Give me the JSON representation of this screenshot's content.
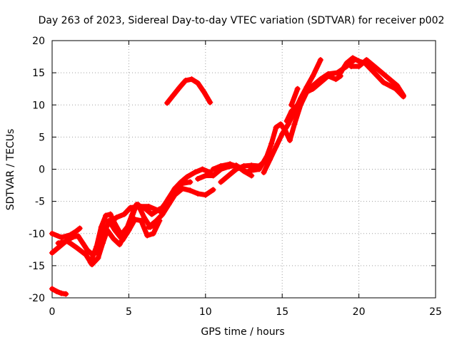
{
  "chart_data": {
    "type": "scatter",
    "title": "Day 263 of 2023, Sidereal Day-to-day VTEC variation (SDTVAR) for receiver p002",
    "xlabel": "GPS time / hours",
    "ylabel": "SDTVAR / TECUs",
    "xlim": [
      0,
      25
    ],
    "ylim": [
      -20,
      20
    ],
    "xticks": [
      0,
      5,
      10,
      15,
      20,
      25
    ],
    "yticks": [
      -20,
      -15,
      -10,
      -5,
      0,
      5,
      10,
      15,
      20
    ],
    "grid": true,
    "marker": "+",
    "color": "#ff0000",
    "series": [
      {
        "name": "s1",
        "points": [
          [
            0,
            -18.6
          ],
          [
            0.3,
            -19.0
          ],
          [
            0.6,
            -19.3
          ],
          [
            0.9,
            -19.4
          ]
        ]
      },
      {
        "name": "s2",
        "points": [
          [
            0,
            -13
          ],
          [
            0.5,
            -12
          ],
          [
            1,
            -11
          ],
          [
            1.4,
            -10.5
          ],
          [
            1.7,
            -10.4
          ],
          [
            2.0,
            -11.5
          ],
          [
            2.3,
            -12.6
          ],
          [
            2.6,
            -13.2
          ]
        ]
      },
      {
        "name": "s3",
        "points": [
          [
            0,
            -10
          ],
          [
            0.6,
            -10.6
          ],
          [
            1.2,
            -10.2
          ],
          [
            1.6,
            -9.6
          ],
          [
            1.8,
            -9.2
          ]
        ]
      },
      {
        "name": "s4",
        "points": [
          [
            0.4,
            -11.5
          ],
          [
            1,
            -11.2
          ],
          [
            1.6,
            -12.2
          ],
          [
            2.2,
            -13.3
          ],
          [
            2.6,
            -14.8
          ],
          [
            3.0,
            -13.8
          ],
          [
            3.3,
            -11.5
          ],
          [
            3.6,
            -9.5
          ],
          [
            4.0,
            -10.8
          ],
          [
            4.4,
            -11.7
          ],
          [
            4.8,
            -10.0
          ],
          [
            5.2,
            -7.5
          ],
          [
            5.5,
            -5.5
          ],
          [
            6.0,
            -6.0
          ],
          [
            6.5,
            -7.0
          ],
          [
            7.0,
            -6.2
          ]
        ]
      },
      {
        "name": "s5",
        "points": [
          [
            2.5,
            -14.5
          ],
          [
            2.9,
            -12.0
          ],
          [
            3.2,
            -9.0
          ],
          [
            3.5,
            -7.2
          ],
          [
            3.8,
            -7.0
          ],
          [
            4.1,
            -8.5
          ],
          [
            4.5,
            -10.2
          ],
          [
            4.9,
            -9.0
          ],
          [
            5.3,
            -6.5
          ],
          [
            5.6,
            -5.5
          ],
          [
            6.0,
            -7.5
          ],
          [
            6.4,
            -9.0
          ],
          [
            6.8,
            -8.5
          ]
        ]
      },
      {
        "name": "s6",
        "points": [
          [
            3.0,
            -13.2
          ],
          [
            3.4,
            -10.0
          ],
          [
            3.7,
            -8.0
          ],
          [
            4.1,
            -9.5
          ],
          [
            4.6,
            -11.0
          ],
          [
            5.0,
            -9.5
          ],
          [
            5.4,
            -7.8
          ],
          [
            5.8,
            -8.0
          ],
          [
            6.2,
            -10.3
          ],
          [
            6.6,
            -10.0
          ],
          [
            7.0,
            -8.0
          ]
        ]
      },
      {
        "name": "s7",
        "points": [
          [
            3.3,
            -9.5
          ],
          [
            3.7,
            -8.5
          ],
          [
            4.2,
            -7.5
          ],
          [
            4.7,
            -7.0
          ],
          [
            5.1,
            -6.0
          ],
          [
            5.6,
            -5.8
          ],
          [
            6.3,
            -5.8
          ],
          [
            7.0,
            -6.5
          ],
          [
            7.5,
            -5.0
          ],
          [
            8.0,
            -3.0
          ],
          [
            8.5,
            -2.2
          ],
          [
            9.0,
            -2.0
          ]
        ]
      },
      {
        "name": "s8",
        "points": [
          [
            6.3,
            -9.0
          ],
          [
            6.8,
            -8.0
          ],
          [
            7.2,
            -7.0
          ],
          [
            7.6,
            -5.5
          ],
          [
            8.0,
            -4.0
          ],
          [
            8.5,
            -3.0
          ],
          [
            9.0,
            -3.3
          ],
          [
            9.5,
            -3.8
          ],
          [
            10.0,
            -4.0
          ],
          [
            10.5,
            -3.2
          ]
        ]
      },
      {
        "name": "s9",
        "points": [
          [
            7.2,
            -6.0
          ],
          [
            7.6,
            -4.5
          ],
          [
            8.0,
            -3.0
          ],
          [
            8.4,
            -2.0
          ],
          [
            8.8,
            -1.2
          ],
          [
            9.3,
            -0.5
          ],
          [
            9.8,
            0
          ],
          [
            10.3,
            -0.5
          ]
        ]
      },
      {
        "name": "s10",
        "points": [
          [
            7.5,
            10.3
          ],
          [
            7.9,
            11.5
          ],
          [
            8.3,
            12.7
          ],
          [
            8.7,
            13.8
          ],
          [
            9.1,
            14.0
          ],
          [
            9.5,
            13.4
          ],
          [
            9.9,
            12.0
          ],
          [
            10.3,
            10.4
          ]
        ]
      },
      {
        "name": "s11",
        "points": [
          [
            9.5,
            -1.5
          ],
          [
            10.0,
            -1.0
          ],
          [
            10.5,
            -1.0
          ],
          [
            11.0,
            0
          ],
          [
            11.5,
            0.4
          ],
          [
            12.0,
            0.6
          ],
          [
            12.5,
            -0.3
          ],
          [
            13.0,
            -1.0
          ]
        ]
      },
      {
        "name": "s12",
        "points": [
          [
            10.5,
            0
          ],
          [
            11.0,
            0.5
          ],
          [
            11.6,
            0.8
          ],
          [
            12.2,
            0.3
          ],
          [
            12.7,
            -0.5
          ],
          [
            13.0,
            0
          ]
        ]
      },
      {
        "name": "s13",
        "points": [
          [
            11.0,
            -2.0
          ],
          [
            11.5,
            -1.0
          ],
          [
            12.0,
            0
          ],
          [
            12.5,
            0.5
          ],
          [
            13.0,
            0.6
          ],
          [
            13.5,
            0.5
          ],
          [
            14.0,
            1.5
          ]
        ]
      },
      {
        "name": "s14",
        "points": [
          [
            13.0,
            -0.2
          ],
          [
            13.5,
            0
          ],
          [
            14.0,
            2.0
          ],
          [
            14.3,
            4.0
          ],
          [
            14.6,
            6.5
          ],
          [
            14.9,
            7.0
          ],
          [
            15.2,
            6.0
          ],
          [
            15.5,
            4.5
          ],
          [
            15.8,
            7.0
          ],
          [
            16.2,
            10.0
          ],
          [
            16.6,
            12.0
          ],
          [
            17.0,
            12.5
          ],
          [
            17.5,
            13.5
          ],
          [
            18.0,
            14.5
          ],
          [
            18.5,
            14.0
          ],
          [
            18.8,
            14.5
          ]
        ]
      },
      {
        "name": "s15",
        "points": [
          [
            13.8,
            -0.5
          ],
          [
            14.2,
            1.5
          ],
          [
            14.6,
            3.5
          ],
          [
            15.0,
            5.5
          ],
          [
            15.4,
            7.0
          ],
          [
            15.8,
            9.0
          ],
          [
            16.2,
            11.0
          ],
          [
            16.6,
            12.8
          ],
          [
            17.0,
            14.5
          ],
          [
            17.5,
            17.0
          ]
        ]
      },
      {
        "name": "s16",
        "points": [
          [
            15.3,
            7.5
          ],
          [
            15.6,
            9.0
          ],
          [
            16.0,
            10.0
          ],
          [
            16.5,
            12.0
          ],
          [
            17.0,
            13.0
          ],
          [
            17.5,
            14.0
          ],
          [
            18.0,
            14.8
          ],
          [
            18.6,
            15.0
          ],
          [
            19.2,
            16.0
          ],
          [
            19.7,
            17.0
          ]
        ]
      },
      {
        "name": "s17",
        "points": [
          [
            15.6,
            10.0
          ],
          [
            16.0,
            12.5
          ]
        ]
      },
      {
        "name": "s18",
        "points": [
          [
            18.8,
            15.0
          ],
          [
            19.2,
            16.5
          ],
          [
            19.6,
            17.3
          ],
          [
            20.0,
            16.8
          ],
          [
            20.4,
            16.5
          ],
          [
            20.8,
            15.5
          ],
          [
            21.2,
            14.5
          ],
          [
            21.6,
            13.5
          ],
          [
            22.0,
            13.0
          ],
          [
            22.4,
            12.5
          ],
          [
            22.9,
            11.3
          ]
        ]
      },
      {
        "name": "s19",
        "points": [
          [
            19.5,
            16.0
          ],
          [
            20.0,
            16.0
          ],
          [
            20.5,
            17.0
          ],
          [
            21.0,
            16.0
          ],
          [
            21.5,
            15.0
          ],
          [
            22.0,
            14.0
          ],
          [
            22.5,
            13.0
          ],
          [
            22.9,
            11.5
          ]
        ]
      }
    ]
  }
}
